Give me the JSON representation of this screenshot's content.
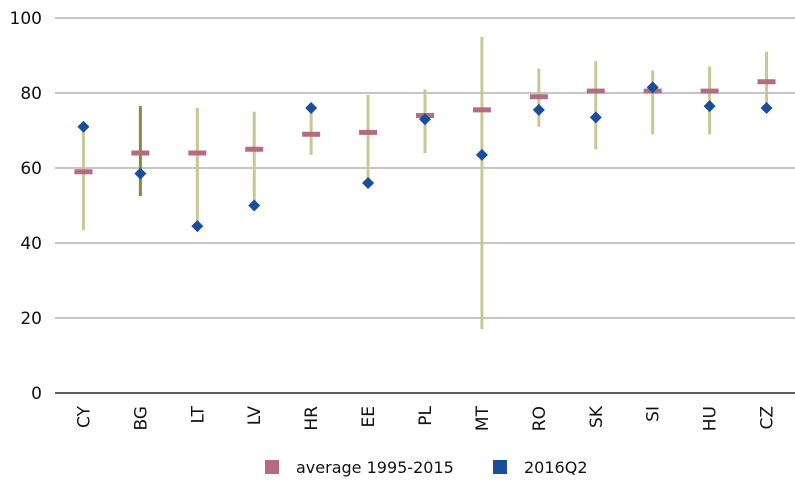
{
  "chart_data": {
    "type": "scatter",
    "title": "",
    "xlabel": "",
    "ylabel": "",
    "ylim": [
      0,
      100
    ],
    "yticks": [
      0,
      20,
      40,
      60,
      80,
      100
    ],
    "grid": true,
    "legend_position": "bottom",
    "categories": [
      "CY",
      "BG",
      "LT",
      "LV",
      "HR",
      "EE",
      "PL",
      "MT",
      "RO",
      "SK",
      "SI",
      "HU",
      "CZ"
    ],
    "range": {
      "min": [
        43.5,
        52.5,
        44.5,
        50.0,
        63.5,
        56.0,
        64.0,
        17.0,
        71.0,
        65.0,
        69.0,
        69.0,
        76.0
      ],
      "max": [
        71.0,
        76.5,
        76.0,
        75.0,
        76.0,
        79.5,
        81.0,
        95.0,
        86.5,
        88.5,
        86.0,
        87.0,
        91.0
      ]
    },
    "series": [
      {
        "name": "average 1995-2015",
        "marker": "dash",
        "values": [
          59.0,
          64.0,
          64.0,
          65.0,
          69.0,
          69.5,
          74.0,
          75.5,
          79.0,
          80.5,
          80.5,
          80.5,
          83.0
        ]
      },
      {
        "name": "2016Q2",
        "marker": "diamond",
        "values": [
          71.0,
          58.5,
          44.5,
          50.0,
          76.0,
          56.0,
          73.0,
          63.5,
          75.5,
          73.5,
          81.5,
          76.5,
          76.0
        ]
      }
    ],
    "colors": {
      "range": "#c8c896",
      "range_highlight": "#8a8a3a",
      "average": "#b56b80",
      "current": "#1a4e9a",
      "grid": "#8c8c8c",
      "axis": "#000000"
    }
  },
  "legend": {
    "items": [
      {
        "label": "average 1995-2015",
        "color": "#b56b80"
      },
      {
        "label": "2016Q2",
        "color": "#1a4e9a"
      }
    ]
  }
}
